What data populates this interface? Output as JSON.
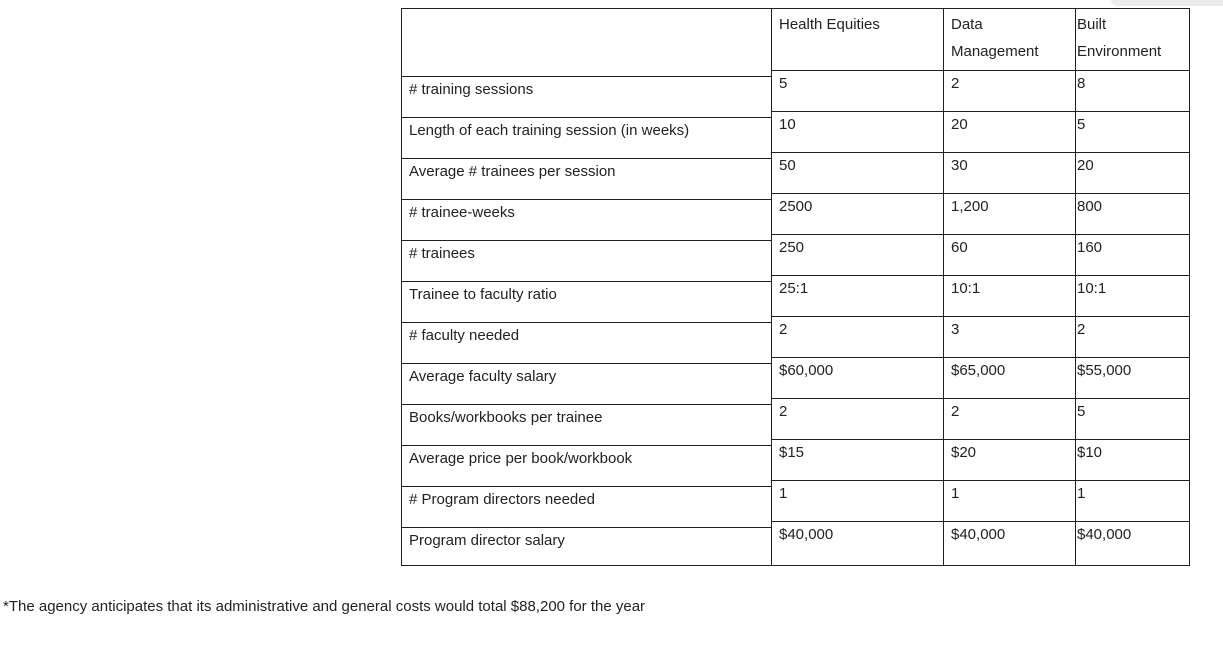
{
  "table": {
    "columns": [
      "",
      "Health Equities",
      "Data Management",
      "Built Environment"
    ],
    "rows": [
      {
        "label": "# training sessions",
        "values": [
          "5",
          "2",
          "8"
        ]
      },
      {
        "label": "Length of each training session (in weeks)",
        "values": [
          "10",
          "20",
          "5"
        ]
      },
      {
        "label": "Average # trainees per session",
        "values": [
          "50",
          "30",
          "20"
        ]
      },
      {
        "label": "# trainee-weeks",
        "values": [
          "2500",
          "1,200",
          "800"
        ]
      },
      {
        "label": "# trainees",
        "values": [
          "250",
          "60",
          "160"
        ]
      },
      {
        "label": "Trainee to faculty ratio",
        "values": [
          "25:1",
          "10:1",
          "10:1"
        ]
      },
      {
        "label": "# faculty needed",
        "values": [
          "2",
          "3",
          "2"
        ]
      },
      {
        "label": "Average faculty salary",
        "values": [
          "$60,000",
          "$65,000",
          "$55,000"
        ]
      },
      {
        "label": "Books/workbooks per trainee",
        "values": [
          "2",
          "2",
          "5"
        ]
      },
      {
        "label": "Average price per book/workbook",
        "values": [
          "$15",
          "$20",
          "$10"
        ]
      },
      {
        "label": "# Program directors needed",
        "values": [
          "1",
          "1",
          "1"
        ]
      },
      {
        "label": "Program director salary",
        "values": [
          "$40,000",
          "$40,000",
          "$40,000"
        ]
      }
    ]
  },
  "footnote": "*The agency anticipates that its administrative and general costs would total $88,200 for the year",
  "colors": {
    "border": "#1f1f1f",
    "text": "#222222",
    "scrollbar_fragment": "#ebebeb"
  }
}
